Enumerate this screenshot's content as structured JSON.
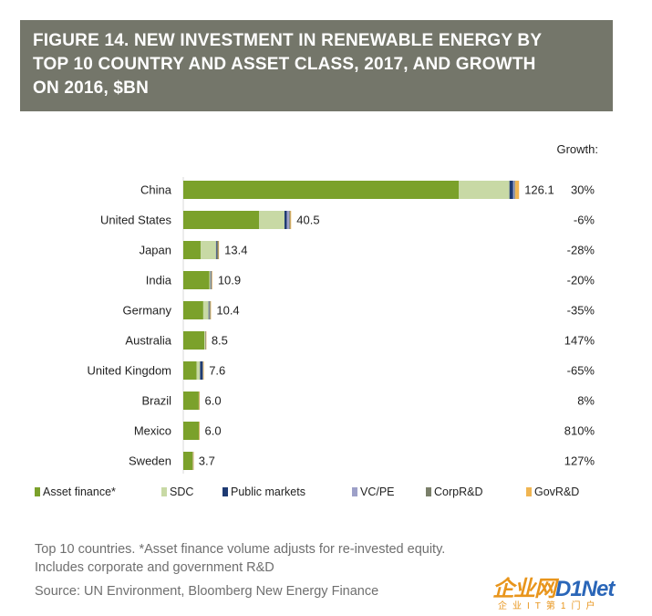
{
  "header": {
    "title_lines": [
      "FIGURE 14. NEW INVESTMENT IN RENEWABLE ENERGY BY",
      "TOP 10 COUNTRY AND ASSET CLASS, 2017, AND GROWTH",
      "ON 2016, $BN"
    ]
  },
  "chart_data": {
    "type": "bar",
    "orientation": "horizontal",
    "stacked": true,
    "title": "FIGURE 14. NEW INVESTMENT IN RENEWABLE ENERGY BY TOP 10 COUNTRY AND ASSET CLASS, 2017, AND GROWTH ON 2016, $BN",
    "growth_header": "Growth:",
    "categories": [
      "China",
      "United States",
      "Japan",
      "India",
      "Germany",
      "Australia",
      "United Kingdom",
      "Brazil",
      "Mexico",
      "Sweden"
    ],
    "totals": [
      "126.1",
      "40.5",
      "13.4",
      "10.9",
      "10.4",
      "8.5",
      "7.6",
      "6.0",
      "6.0",
      "3.7"
    ],
    "growth": [
      "30%",
      "-6%",
      "-28%",
      "-20%",
      "-35%",
      "147%",
      "-65%",
      "8%",
      "810%",
      "127%"
    ],
    "series": [
      {
        "name": "Asset finance*",
        "color": "#7ba12b",
        "values": [
          103.5,
          28.5,
          6.5,
          9.8,
          7.5,
          7.9,
          5.0,
          5.8,
          5.9,
          3.5
        ]
      },
      {
        "name": "SDC",
        "color": "#c8d9a5",
        "values": [
          19.0,
          9.5,
          5.8,
          0.4,
          2.0,
          0.4,
          1.3,
          0.1,
          0.05,
          0.1
        ]
      },
      {
        "name": "Public markets",
        "color": "#1f3b73",
        "values": [
          1.4,
          0.9,
          0.2,
          0.2,
          0.2,
          0.05,
          0.9,
          0.0,
          0.0,
          0.05
        ]
      },
      {
        "name": "VC/PE",
        "color": "#9da0c8",
        "values": [
          0.5,
          0.9,
          0.1,
          0.1,
          0.1,
          0.05,
          0.1,
          0.0,
          0.0,
          0.0
        ]
      },
      {
        "name": "CorpR&D",
        "color": "#7a7f6a",
        "values": [
          0.3,
          0.4,
          0.6,
          0.2,
          0.4,
          0.05,
          0.2,
          0.05,
          0.02,
          0.02
        ]
      },
      {
        "name": "GovR&D",
        "color": "#f0b552",
        "values": [
          1.4,
          0.3,
          0.2,
          0.2,
          0.2,
          0.05,
          0.1,
          0.05,
          0.03,
          0.03
        ]
      }
    ],
    "xlim": [
      0,
      135
    ],
    "grid": false,
    "legend_position": "bottom"
  },
  "footnotes": [
    "Top 10 countries. *Asset finance volume adjusts for re-invested equity.",
    "Includes corporate and government R&D",
    "Source: UN Environment, Bloomberg New Energy Finance"
  ],
  "logo": {
    "main": "企业网",
    "net": "D1Net",
    "sub": "企业IT第1门户"
  }
}
